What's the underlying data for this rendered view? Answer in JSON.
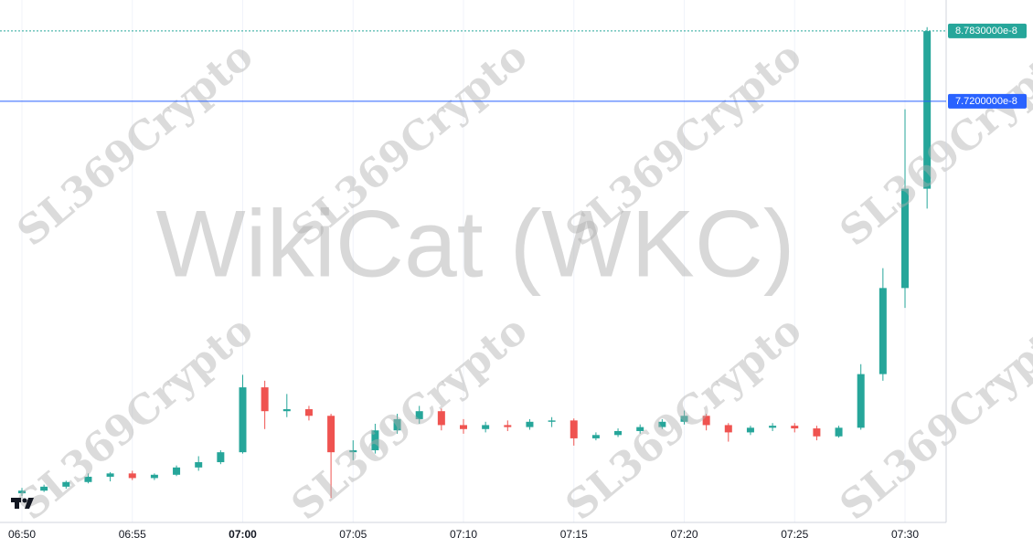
{
  "chart_data": {
    "type": "candlestick",
    "symbol": "WikiCat (WKC)",
    "watermark": "SL369Crypto",
    "up_color": "#26a69a",
    "down_color": "#ef5350",
    "x": [
      "06:50",
      "06:51",
      "06:52",
      "06:53",
      "06:54",
      "06:55",
      "06:56",
      "06:57",
      "06:58",
      "06:59",
      "07:00",
      "07:01",
      "07:02",
      "07:03",
      "07:04",
      "07:05",
      "07:06",
      "07:07",
      "07:08",
      "07:09",
      "07:10",
      "07:11",
      "07:12",
      "07:13",
      "07:14",
      "07:15",
      "07:16",
      "07:17",
      "07:18",
      "07:19",
      "07:20",
      "07:21",
      "07:22",
      "07:23",
      "07:24",
      "07:25",
      "07:26",
      "07:27",
      "07:28",
      "07:29",
      "07:30",
      "07:31"
    ],
    "ohlc": [
      [
        1.8e-08,
        1.88e-08,
        1.76e-08,
        1.84e-08
      ],
      [
        1.84e-08,
        1.93e-08,
        1.82e-08,
        1.9e-08
      ],
      [
        1.9e-08,
        1.99e-08,
        1.87e-08,
        1.97e-08
      ],
      [
        1.97e-08,
        2.1e-08,
        1.95e-08,
        2.05e-08
      ],
      [
        2.05e-08,
        2.12e-08,
        1.98e-08,
        2.1e-08
      ],
      [
        2.1e-08,
        2.14e-08,
        2e-08,
        2.03e-08
      ],
      [
        2.03e-08,
        2.1e-08,
        2e-08,
        2.08e-08
      ],
      [
        2.08e-08,
        2.22e-08,
        2.06e-08,
        2.19e-08
      ],
      [
        2.19e-08,
        2.36e-08,
        2.14e-08,
        2.27e-08
      ],
      [
        2.27e-08,
        2.45e-08,
        2.24e-08,
        2.42e-08
      ],
      [
        2.42e-08,
        3.59e-08,
        2.4e-08,
        3.4e-08
      ],
      [
        3.4e-08,
        3.5e-08,
        2.77e-08,
        3.04e-08
      ],
      [
        3.04e-08,
        3.3e-08,
        2.95e-08,
        3.07e-08
      ],
      [
        3.07e-08,
        3.12e-08,
        2.9e-08,
        2.97e-08
      ],
      [
        2.97e-08,
        3e-08,
        1.73e-08,
        2.42e-08
      ],
      [
        2.42e-08,
        2.6e-08,
        2.3e-08,
        2.45e-08
      ],
      [
        2.45e-08,
        2.85e-08,
        2.4e-08,
        2.75e-08
      ],
      [
        2.75e-08,
        3e-08,
        2.7e-08,
        2.92e-08
      ],
      [
        2.92e-08,
        3.12e-08,
        2.85e-08,
        3.04e-08
      ],
      [
        3.04e-08,
        3.08e-08,
        2.75e-08,
        2.83e-08
      ],
      [
        2.83e-08,
        2.92e-08,
        2.7e-08,
        2.77e-08
      ],
      [
        2.77e-08,
        2.88e-08,
        2.72e-08,
        2.83e-08
      ],
      [
        2.83e-08,
        2.9e-08,
        2.74e-08,
        2.8e-08
      ],
      [
        2.8e-08,
        2.92e-08,
        2.76e-08,
        2.88e-08
      ],
      [
        2.88e-08,
        2.95e-08,
        2.8e-08,
        2.9e-08
      ],
      [
        2.9e-08,
        2.93e-08,
        2.52e-08,
        2.63e-08
      ],
      [
        2.63e-08,
        2.72e-08,
        2.6e-08,
        2.68e-08
      ],
      [
        2.68e-08,
        2.78e-08,
        2.65e-08,
        2.74e-08
      ],
      [
        2.74e-08,
        2.84e-08,
        2.7e-08,
        2.8e-08
      ],
      [
        2.8e-08,
        2.92e-08,
        2.77e-08,
        2.88e-08
      ],
      [
        2.88e-08,
        3.05e-08,
        2.84e-08,
        2.97e-08
      ],
      [
        2.97e-08,
        3e-08,
        2.75e-08,
        2.83e-08
      ],
      [
        2.83e-08,
        2.86e-08,
        2.58e-08,
        2.72e-08
      ],
      [
        2.72e-08,
        2.82e-08,
        2.68e-08,
        2.79e-08
      ],
      [
        2.79e-08,
        2.86e-08,
        2.74e-08,
        2.82e-08
      ],
      [
        2.82e-08,
        2.86e-08,
        2.72e-08,
        2.78e-08
      ],
      [
        2.78e-08,
        2.82e-08,
        2.6e-08,
        2.66e-08
      ],
      [
        2.66e-08,
        2.82e-08,
        2.64e-08,
        2.79e-08
      ],
      [
        2.79e-08,
        3.75e-08,
        2.76e-08,
        3.6e-08
      ],
      [
        3.6e-08,
        5.2e-08,
        3.5e-08,
        4.9e-08
      ],
      [
        4.9e-08,
        7.6e-08,
        4.6e-08,
        6.4e-08
      ],
      [
        6.4e-08,
        8.84e-08,
        6.1e-08,
        8.78e-08
      ]
    ],
    "xticks": [
      "06:50",
      "06:55",
      "07:00",
      "07:05",
      "07:10",
      "07:15",
      "07:20",
      "07:25",
      "07:30"
    ],
    "ylim": [
      1.36e-08,
      9.25e-08
    ],
    "price_lines": [
      {
        "value": 8.783e-08,
        "label": "8.7830000e-8",
        "color": "#26a69a",
        "style": "dotted"
      },
      {
        "value": 7.72e-08,
        "label": "7.7200000e-8",
        "color": "#2962ff",
        "style": "solid"
      }
    ],
    "grid": true
  }
}
